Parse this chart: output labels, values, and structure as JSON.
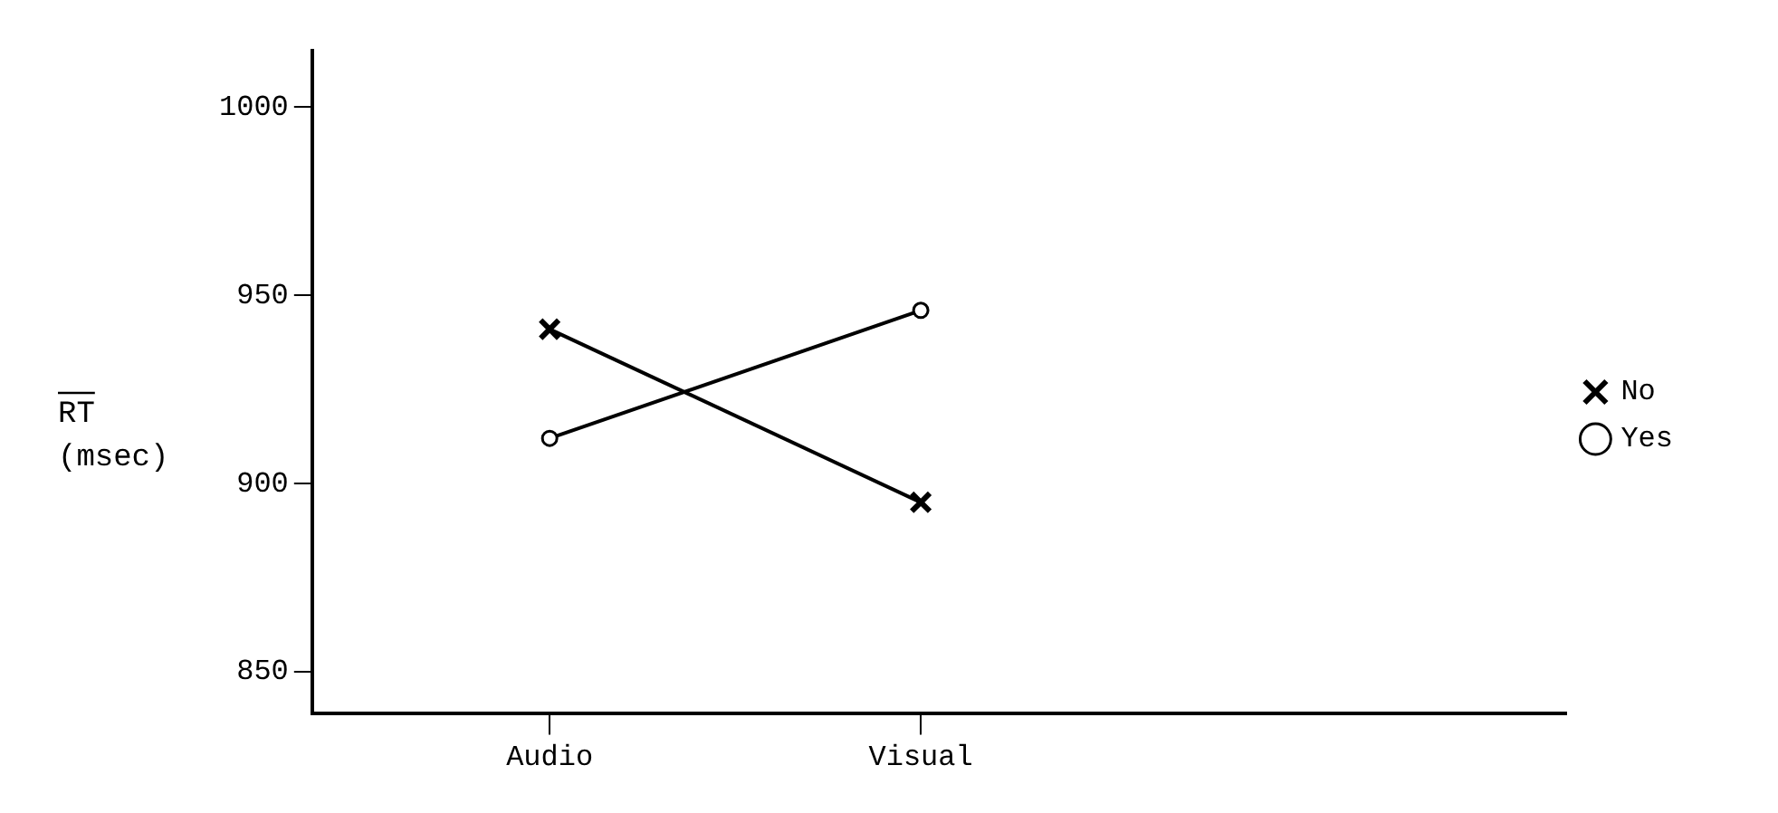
{
  "chart_data": {
    "type": "line",
    "categories": [
      "Audio",
      "Visual"
    ],
    "ylabel": "RT (msec)",
    "ylim": [
      839,
      1015
    ],
    "yticks": [
      850,
      900,
      950,
      1000
    ],
    "grid": false,
    "legend": "right",
    "line_style": "solid",
    "series": [
      {
        "name": "No",
        "color": "#000000",
        "marker": "cross",
        "values": [
          941,
          895
        ]
      },
      {
        "name": "Yes",
        "color": "#000000",
        "marker": "circle",
        "values": [
          912,
          946
        ]
      }
    ]
  }
}
